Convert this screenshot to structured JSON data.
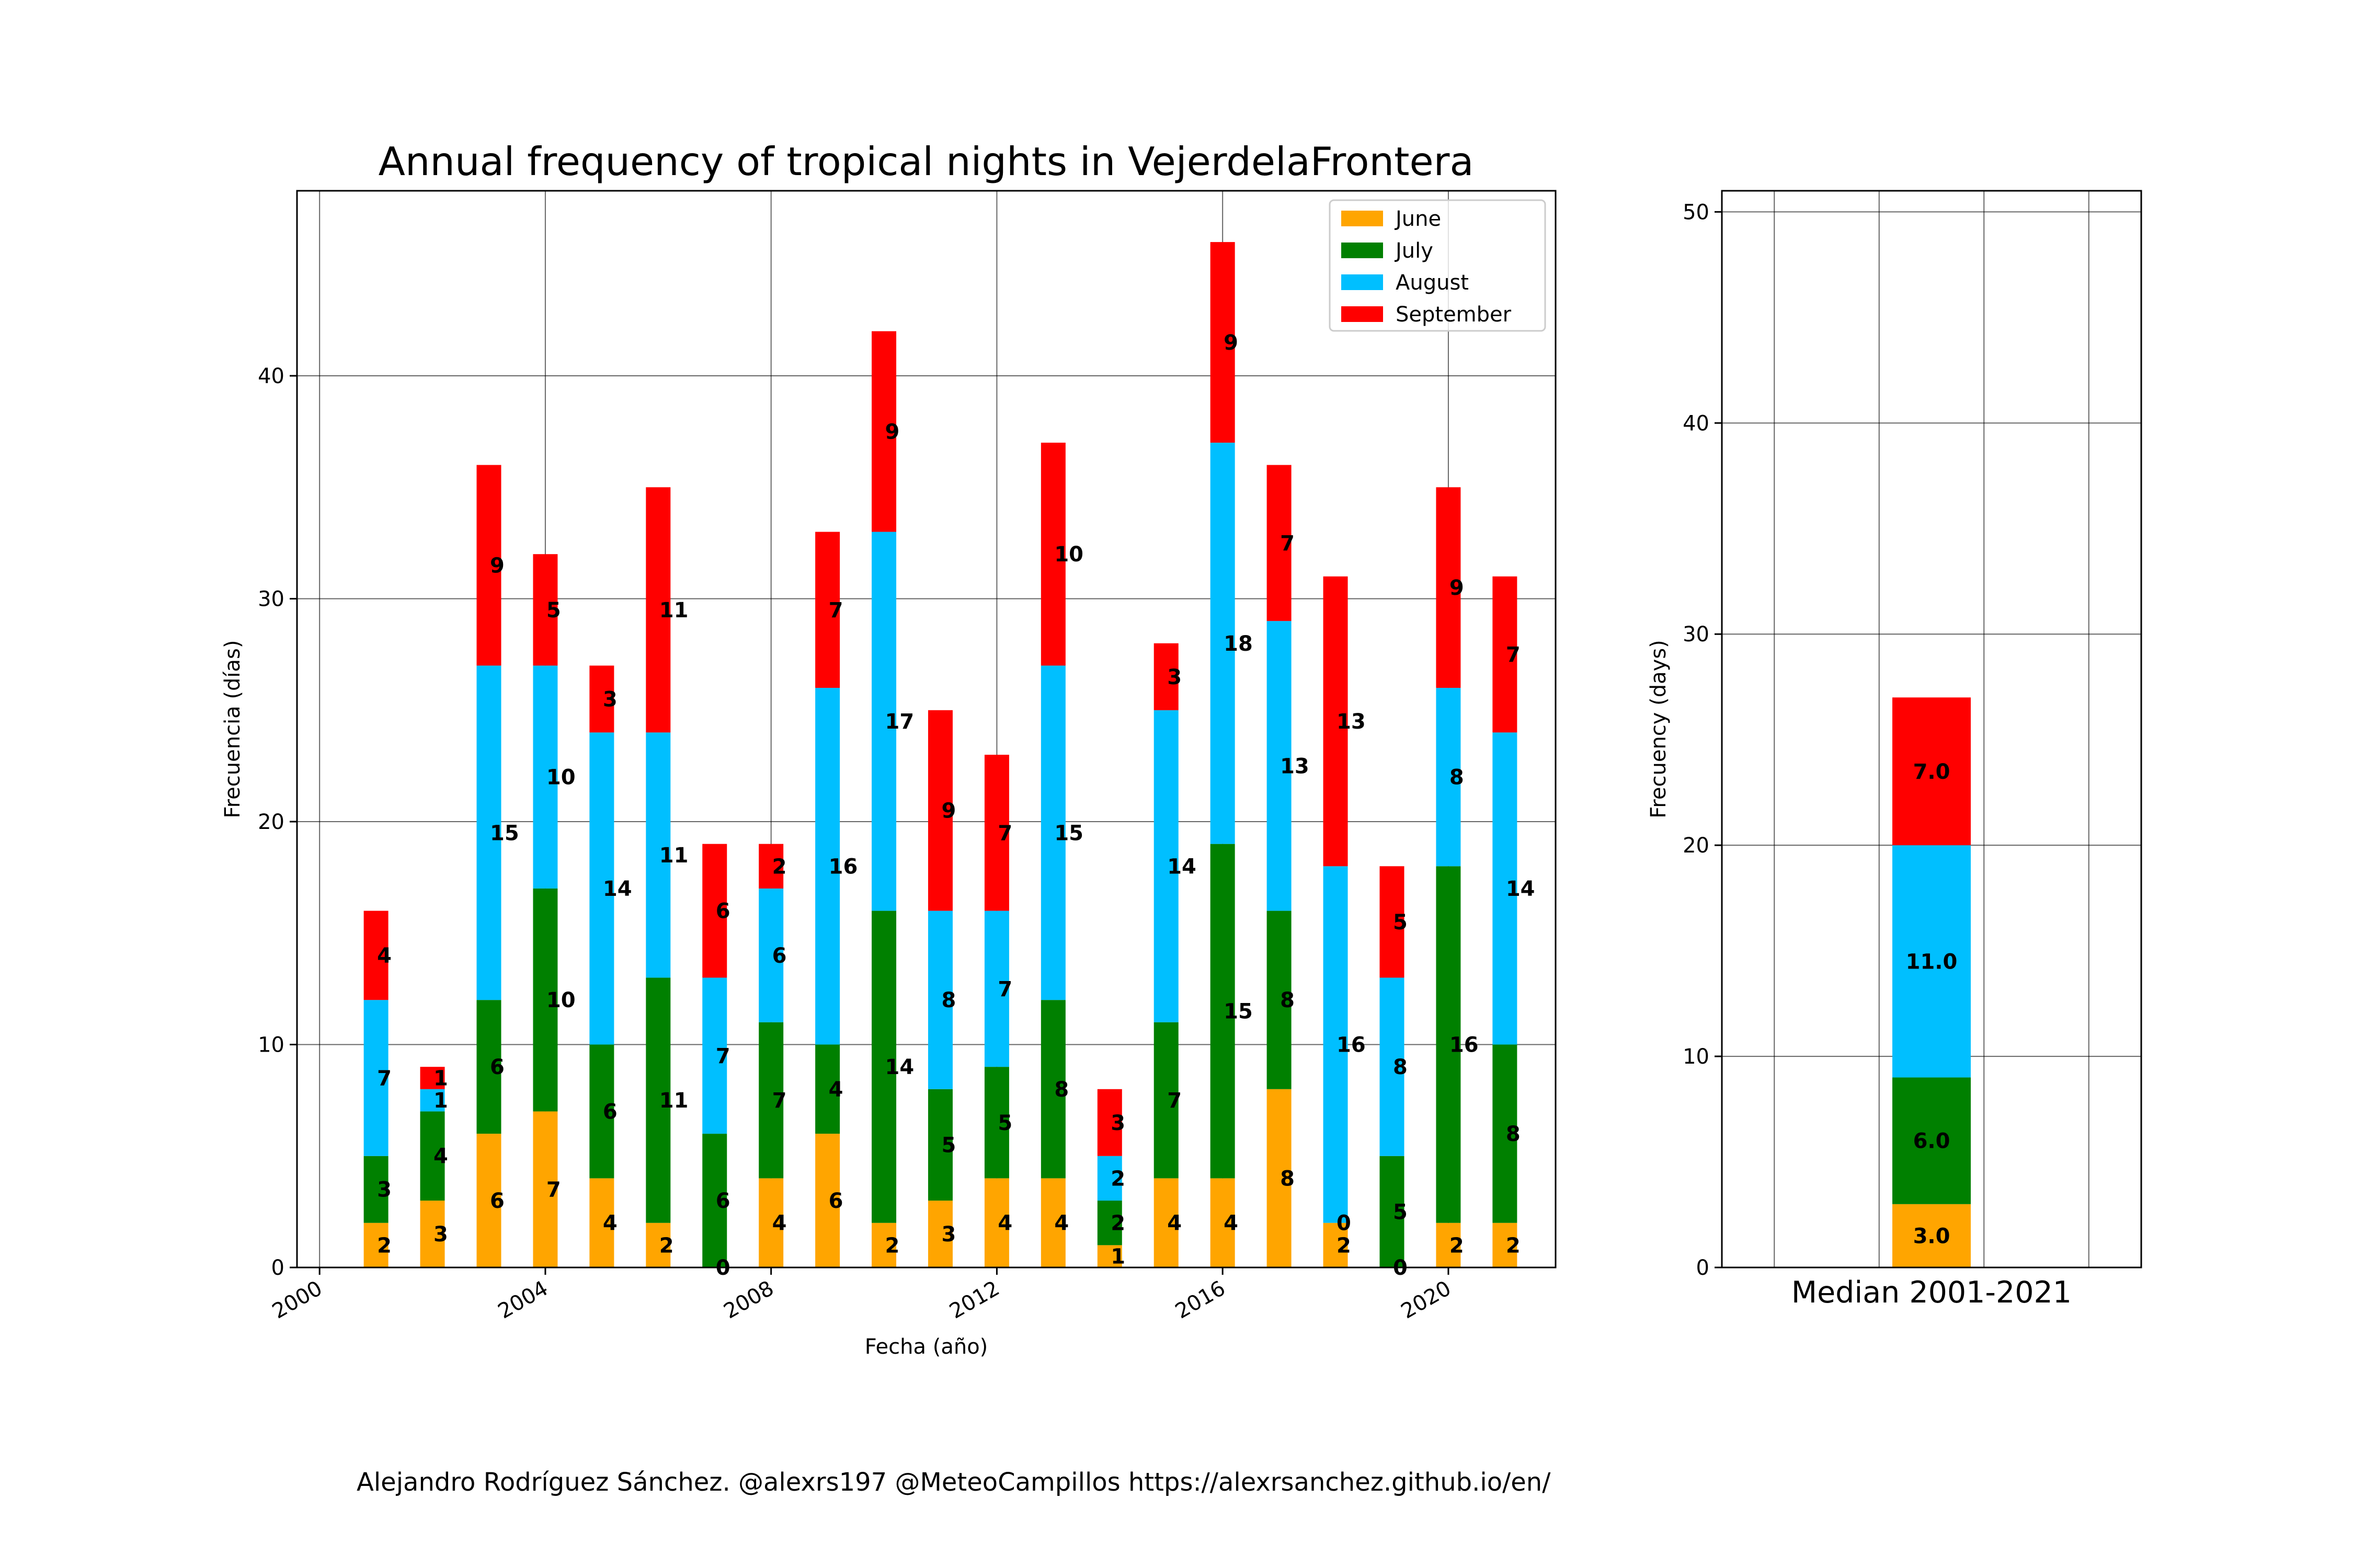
{
  "credit": "Alejandro Rodríguez Sánchez. @alexrs197 @MeteoCampillos   https://alexrsanchez.github.io/en/",
  "colors": {
    "June": "#FFA500",
    "July": "#008000",
    "August": "#00BFFF",
    "September": "#FF0000"
  },
  "chart_data": [
    {
      "type": "bar",
      "stacked": true,
      "title": "Annual frequency of tropical nights in VejerdelaFrontera",
      "xlabel": "Fecha (año)",
      "ylabel": "Frecuencia (días)",
      "xlim": [
        1999.6,
        2021.9
      ],
      "ylim": [
        0,
        48.3
      ],
      "x_ticks": [
        2000,
        2004,
        2008,
        2012,
        2016,
        2020
      ],
      "y_ticks": [
        0,
        10,
        20,
        30,
        40
      ],
      "grid": true,
      "legend": "top-right",
      "categories": [
        2001,
        2002,
        2003,
        2004,
        2005,
        2006,
        2007,
        2008,
        2009,
        2010,
        2011,
        2012,
        2013,
        2014,
        2015,
        2016,
        2017,
        2018,
        2019,
        2020,
        2021
      ],
      "series": [
        {
          "name": "June",
          "values": [
            2,
            3,
            6,
            7,
            4,
            2,
            0,
            4,
            6,
            2,
            3,
            4,
            4,
            1,
            4,
            4,
            8,
            2,
            0,
            2,
            2
          ]
        },
        {
          "name": "July",
          "values": [
            3,
            4,
            6,
            10,
            6,
            11,
            6,
            7,
            4,
            14,
            5,
            5,
            8,
            2,
            7,
            15,
            8,
            0,
            5,
            16,
            8
          ]
        },
        {
          "name": "August",
          "values": [
            7,
            1,
            15,
            10,
            14,
            11,
            7,
            6,
            16,
            17,
            8,
            7,
            15,
            2,
            14,
            18,
            13,
            16,
            8,
            8,
            14
          ]
        },
        {
          "name": "September",
          "values": [
            4,
            1,
            9,
            5,
            3,
            11,
            6,
            2,
            7,
            9,
            9,
            7,
            10,
            3,
            3,
            9,
            7,
            13,
            5,
            9,
            7
          ]
        }
      ]
    },
    {
      "type": "bar",
      "stacked": true,
      "title": "",
      "xlabel": "Median 2001-2021",
      "ylabel": "Frecuency (days)",
      "ylim": [
        0,
        51
      ],
      "y_ticks": [
        0,
        10,
        20,
        30,
        40,
        50
      ],
      "grid": true,
      "categories": [
        "Median 2001-2021"
      ],
      "series": [
        {
          "name": "June",
          "values": [
            3.0
          ]
        },
        {
          "name": "July",
          "values": [
            6.0
          ]
        },
        {
          "name": "August",
          "values": [
            11.0
          ]
        },
        {
          "name": "September",
          "values": [
            7.0
          ]
        }
      ],
      "labels": [
        "3.0",
        "6.0",
        "11.0",
        "7.0"
      ]
    }
  ]
}
